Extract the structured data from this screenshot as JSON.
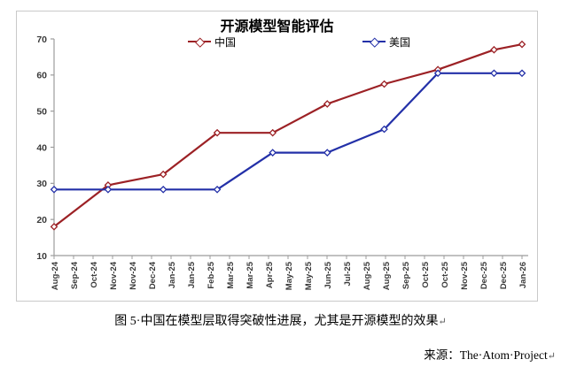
{
  "page": {
    "caption_text": "图 5·中国在模型层取得突破性进展，尤其是开源模型的效果",
    "source_label": "来源：",
    "source_text": "The·Atom·Project",
    "return_mark": "↵"
  },
  "chart": {
    "title": "开源模型智能评估",
    "legend": [
      {
        "label": "中国",
        "slug": "china",
        "color": "#9c2125"
      },
      {
        "label": "美国",
        "slug": "us",
        "color": "#2330a8"
      }
    ]
  },
  "chart_data": {
    "type": "line",
    "title": "开源模型智能评估",
    "x_tick_labels": [
      "Aug-24",
      "Sep-24",
      "Oct-24",
      "Nov-24",
      "Nov-24",
      "Dec-24",
      "Jan-25",
      "Jan-25",
      "Feb-25",
      "Mar-25",
      "Mar-25",
      "Apr-25",
      "May-25",
      "May-25",
      "Jun-25",
      "Jul-25",
      "Aug-25",
      "Aug-25",
      "Sep-25",
      "Oct-25",
      "Oct-25",
      "Nov-25",
      "Dec-25",
      "Dec-25",
      "Jan-26"
    ],
    "ylim": [
      10,
      70
    ],
    "y_ticks": [
      10,
      20,
      30,
      40,
      50,
      60,
      70
    ],
    "grid": false,
    "legend_position": "top-inside",
    "marker": "open-diamond",
    "frame_color": "#c9c9c9",
    "axis_color": "#9c9c9c",
    "tick_label_color": "#3a3a3a",
    "series": [
      {
        "name": "中国",
        "slug": "china",
        "color": "#9c2125",
        "x_frac": [
          0,
          0.1154,
          0.2333,
          0.3486,
          0.4672,
          0.5838,
          0.7056,
          0.8203,
          0.9402,
          1.0
        ],
        "values": [
          18,
          29.5,
          32.5,
          44,
          44,
          52,
          57.5,
          61.5,
          67,
          68.5
        ]
      },
      {
        "name": "美国",
        "slug": "us",
        "color": "#2330a8",
        "x_frac": [
          0,
          0.1154,
          0.2333,
          0.3486,
          0.4672,
          0.5838,
          0.7056,
          0.8203,
          0.9402,
          1.0
        ],
        "values": [
          28.3,
          28.3,
          28.3,
          28.3,
          38.5,
          38.5,
          45,
          60.5,
          60.5,
          60.5
        ]
      }
    ]
  }
}
